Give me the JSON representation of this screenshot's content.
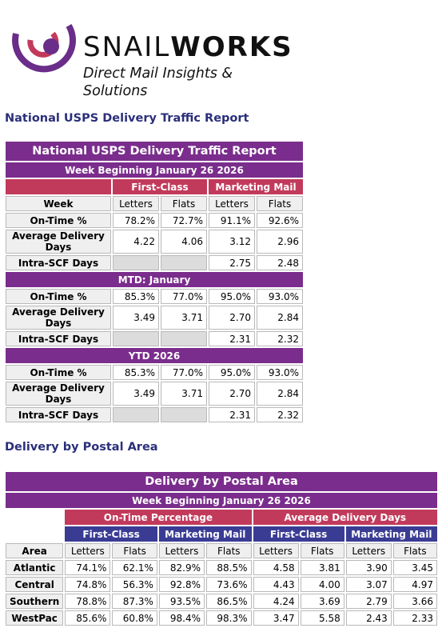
{
  "brand": {
    "name_light": "SNAIL",
    "name_bold": "WORKS",
    "tagline": "Direct Mail Insights & Solutions",
    "colors": {
      "arc": "#6a2d8a",
      "accent": "#c23a5b"
    }
  },
  "national": {
    "heading": "National USPS Delivery Traffic Report",
    "title": "National USPS Delivery Traffic Report",
    "week": "Week Beginning January 26 2026",
    "group_first_class": "First-Class",
    "group_marketing": "Marketing Mail",
    "col_week": "Week",
    "col_letters": "Letters",
    "col_flats": "Flats",
    "week_rows": [
      {
        "label": "On-Time %",
        "fc_letters": "78.2%",
        "fc_flats": "72.7%",
        "mm_letters": "91.1%",
        "mm_flats": "92.6%"
      },
      {
        "label": "Average Delivery Days",
        "fc_letters": "4.22",
        "fc_flats": "4.06",
        "mm_letters": "3.12",
        "mm_flats": "2.96"
      },
      {
        "label": "Intra-SCF Days",
        "fc_letters": "",
        "fc_flats": "",
        "mm_letters": "2.75",
        "mm_flats": "2.48"
      }
    ],
    "mtd_title": "MTD: January",
    "mtd_rows": [
      {
        "label": "On-Time %",
        "fc_letters": "85.3%",
        "fc_flats": "77.0%",
        "mm_letters": "95.0%",
        "mm_flats": "93.0%"
      },
      {
        "label": "Average Delivery Days",
        "fc_letters": "3.49",
        "fc_flats": "3.71",
        "mm_letters": "2.70",
        "mm_flats": "2.84"
      },
      {
        "label": "Intra-SCF Days",
        "fc_letters": "",
        "fc_flats": "",
        "mm_letters": "2.31",
        "mm_flats": "2.32"
      }
    ],
    "ytd_title": "YTD 2026",
    "ytd_rows": [
      {
        "label": "On-Time %",
        "fc_letters": "85.3%",
        "fc_flats": "77.0%",
        "mm_letters": "95.0%",
        "mm_flats": "93.0%"
      },
      {
        "label": "Average Delivery Days",
        "fc_letters": "3.49",
        "fc_flats": "3.71",
        "mm_letters": "2.70",
        "mm_flats": "2.84"
      },
      {
        "label": "Intra-SCF Days",
        "fc_letters": "",
        "fc_flats": "",
        "mm_letters": "2.31",
        "mm_flats": "2.32"
      }
    ]
  },
  "postal": {
    "heading": "Delivery by Postal Area",
    "title": "Delivery by Postal Area",
    "week": "Week Beginning January 26 2026",
    "group_ontime": "On-Time Percentage",
    "group_avg": "Average Delivery Days",
    "sub_first_class": "First-Class",
    "sub_marketing": "Marketing Mail",
    "col_area": "Area",
    "col_letters": "Letters",
    "col_flats": "Flats",
    "rows": [
      {
        "area": "Atlantic",
        "ot_fc_l": "74.1%",
        "ot_fc_f": "62.1%",
        "ot_mm_l": "82.9%",
        "ot_mm_f": "88.5%",
        "ad_fc_l": "4.58",
        "ad_fc_f": "3.81",
        "ad_mm_l": "3.90",
        "ad_mm_f": "3.45"
      },
      {
        "area": "Central",
        "ot_fc_l": "74.8%",
        "ot_fc_f": "56.3%",
        "ot_mm_l": "92.8%",
        "ot_mm_f": "73.6%",
        "ad_fc_l": "4.43",
        "ad_fc_f": "4.00",
        "ad_mm_l": "3.07",
        "ad_mm_f": "4.97"
      },
      {
        "area": "Southern",
        "ot_fc_l": "78.8%",
        "ot_fc_f": "87.3%",
        "ot_mm_l": "93.5%",
        "ot_mm_f": "86.5%",
        "ad_fc_l": "4.24",
        "ad_fc_f": "3.69",
        "ad_mm_l": "2.79",
        "ad_mm_f": "3.66"
      },
      {
        "area": "WestPac",
        "ot_fc_l": "85.6%",
        "ot_fc_f": "60.8%",
        "ot_mm_l": "98.4%",
        "ot_mm_f": "98.3%",
        "ad_fc_l": "3.47",
        "ad_fc_f": "5.58",
        "ad_mm_l": "2.43",
        "ad_mm_f": "2.33"
      }
    ]
  }
}
